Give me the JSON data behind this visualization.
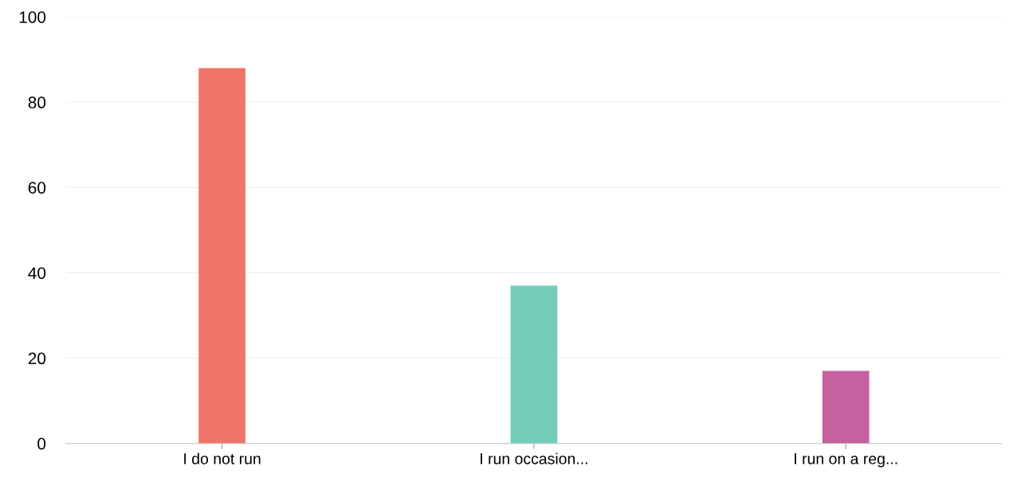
{
  "chart_data": {
    "type": "bar",
    "categories": [
      "I do not run",
      "I run occasion...",
      "I run on a reg..."
    ],
    "values": [
      88,
      37,
      17
    ],
    "colors": [
      "#f07468",
      "#74cdb8",
      "#c6619f"
    ],
    "ylim": [
      0,
      100
    ],
    "yticks": [
      0,
      20,
      40,
      60,
      80,
      100
    ],
    "grid": "y"
  }
}
